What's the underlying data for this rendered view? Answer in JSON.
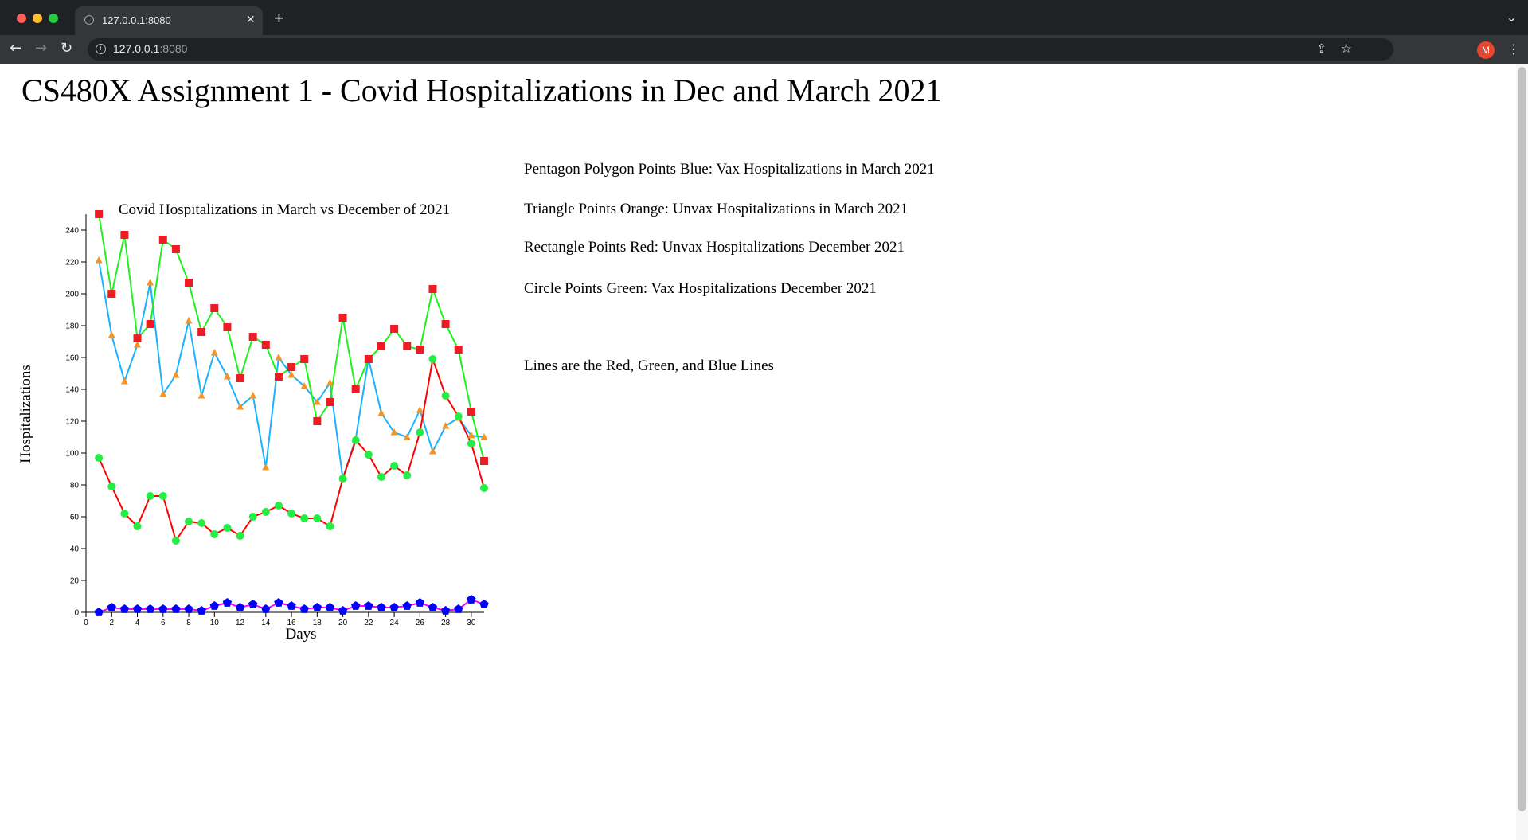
{
  "browser": {
    "tab_title": "127.0.0.1:8080",
    "url_host": "127.0.0.1",
    "url_port": ":8080",
    "avatar_letter": "M"
  },
  "page": {
    "title": "CS480X Assignment 1 - Covid Hospitalizations in Dec and March 2021",
    "legend": [
      "Pentagon Polygon Points Blue: Vax Hospitalizations in March 2021",
      "Triangle Points Orange: Unvax Hospitalizations in March 2021",
      "Rectangle Points Red: Unvax Hospitalizations December 2021",
      "Circle Points Green: Vax Hospitalizations December 2021",
      "Lines are the Red, Green, and Blue Lines"
    ]
  },
  "chart_data": {
    "type": "line",
    "title": "Covid Hospitalizations in March vs December of 2021",
    "xlabel": "Days",
    "ylabel": "Hospitalizations",
    "xlim": [
      0,
      31
    ],
    "ylim": [
      0,
      250
    ],
    "xticks": [
      0,
      2,
      4,
      6,
      8,
      10,
      12,
      14,
      16,
      18,
      20,
      22,
      24,
      26,
      28,
      30
    ],
    "yticks": [
      0,
      20,
      40,
      60,
      80,
      100,
      120,
      140,
      160,
      180,
      200,
      220,
      240
    ],
    "x": [
      1,
      2,
      3,
      4,
      5,
      6,
      7,
      8,
      9,
      10,
      11,
      12,
      13,
      14,
      15,
      16,
      17,
      18,
      19,
      20,
      21,
      22,
      23,
      24,
      25,
      26,
      27,
      28,
      29,
      30,
      31
    ],
    "series": [
      {
        "marker": "pentagon",
        "marker_color": "#0000ff",
        "line_color": "#ff00ff",
        "values": [
          0,
          3,
          2,
          2,
          2,
          2,
          2,
          2,
          1,
          4,
          6,
          3,
          5,
          2,
          6,
          4,
          2,
          3,
          3,
          1,
          4,
          4,
          3,
          3,
          4,
          6,
          3,
          1,
          2,
          8,
          5
        ]
      },
      {
        "marker": "triangle",
        "marker_color": "#f7931e",
        "line_color": "#1ab2ff",
        "values": [
          221,
          174,
          145,
          168,
          207,
          137,
          149,
          183,
          136,
          163,
          148,
          129,
          136,
          91,
          160,
          149,
          142,
          132,
          144,
          84,
          109,
          159,
          125,
          113,
          110,
          127,
          101,
          117,
          122,
          111,
          110
        ]
      },
      {
        "marker": "square",
        "marker_color": "#ed1c24",
        "line_color": "#1ff11f",
        "values": [
          250,
          200,
          237,
          172,
          181,
          234,
          228,
          207,
          176,
          191,
          179,
          147,
          173,
          168,
          148,
          154,
          159,
          120,
          132,
          185,
          140,
          159,
          167,
          178,
          167,
          165,
          203,
          181,
          165,
          126,
          95
        ]
      },
      {
        "marker": "circle",
        "marker_color": "#22ee44",
        "line_color": "#ff0000",
        "values": [
          97,
          79,
          62,
          54,
          73,
          73,
          45,
          57,
          56,
          49,
          53,
          48,
          60,
          63,
          67,
          62,
          59,
          59,
          54,
          84,
          108,
          99,
          85,
          92,
          86,
          113,
          159,
          136,
          123,
          106,
          78
        ]
      }
    ]
  }
}
